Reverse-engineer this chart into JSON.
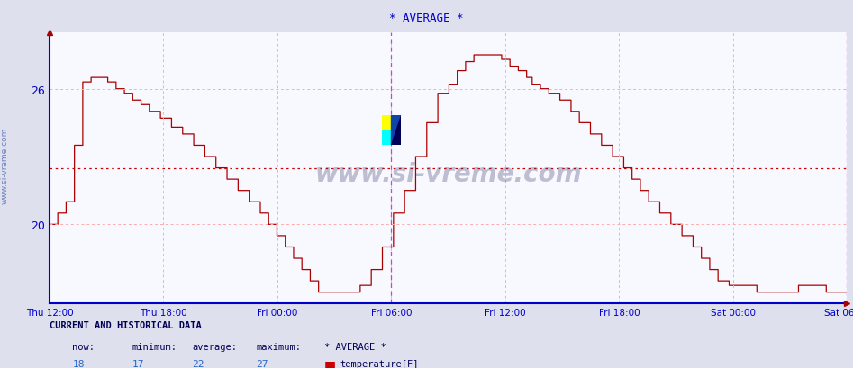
{
  "title": "* AVERAGE *",
  "bg_color": "#dfe0ee",
  "plot_bg_color": "#f8f8ff",
  "line_color": "#aa0000",
  "grid_color": "#ffaaaa",
  "avg_line_color": "#cc0000",
  "avg_line_y": 22.5,
  "y_ticks": [
    20,
    26
  ],
  "y_min": 16.5,
  "y_max": 28.5,
  "x_labels": [
    "Thu 12:00",
    "Thu 18:00",
    "Fri 00:00",
    "Fri 06:00",
    "Fri 12:00",
    "Fri 18:00",
    "Sat 00:00",
    "Sat 06:00"
  ],
  "title_color": "#0000cc",
  "axis_color": "#0000cc",
  "watermark": "www.si-vreme.com",
  "footer_label": "CURRENT AND HISTORICAL DATA",
  "footer_now": "18",
  "footer_min": "17",
  "footer_avg": "22",
  "footer_max": "27",
  "footer_series": "* AVERAGE *",
  "footer_type": "temperature[F]",
  "legend_color": "#cc0000",
  "num_segments": 576
}
